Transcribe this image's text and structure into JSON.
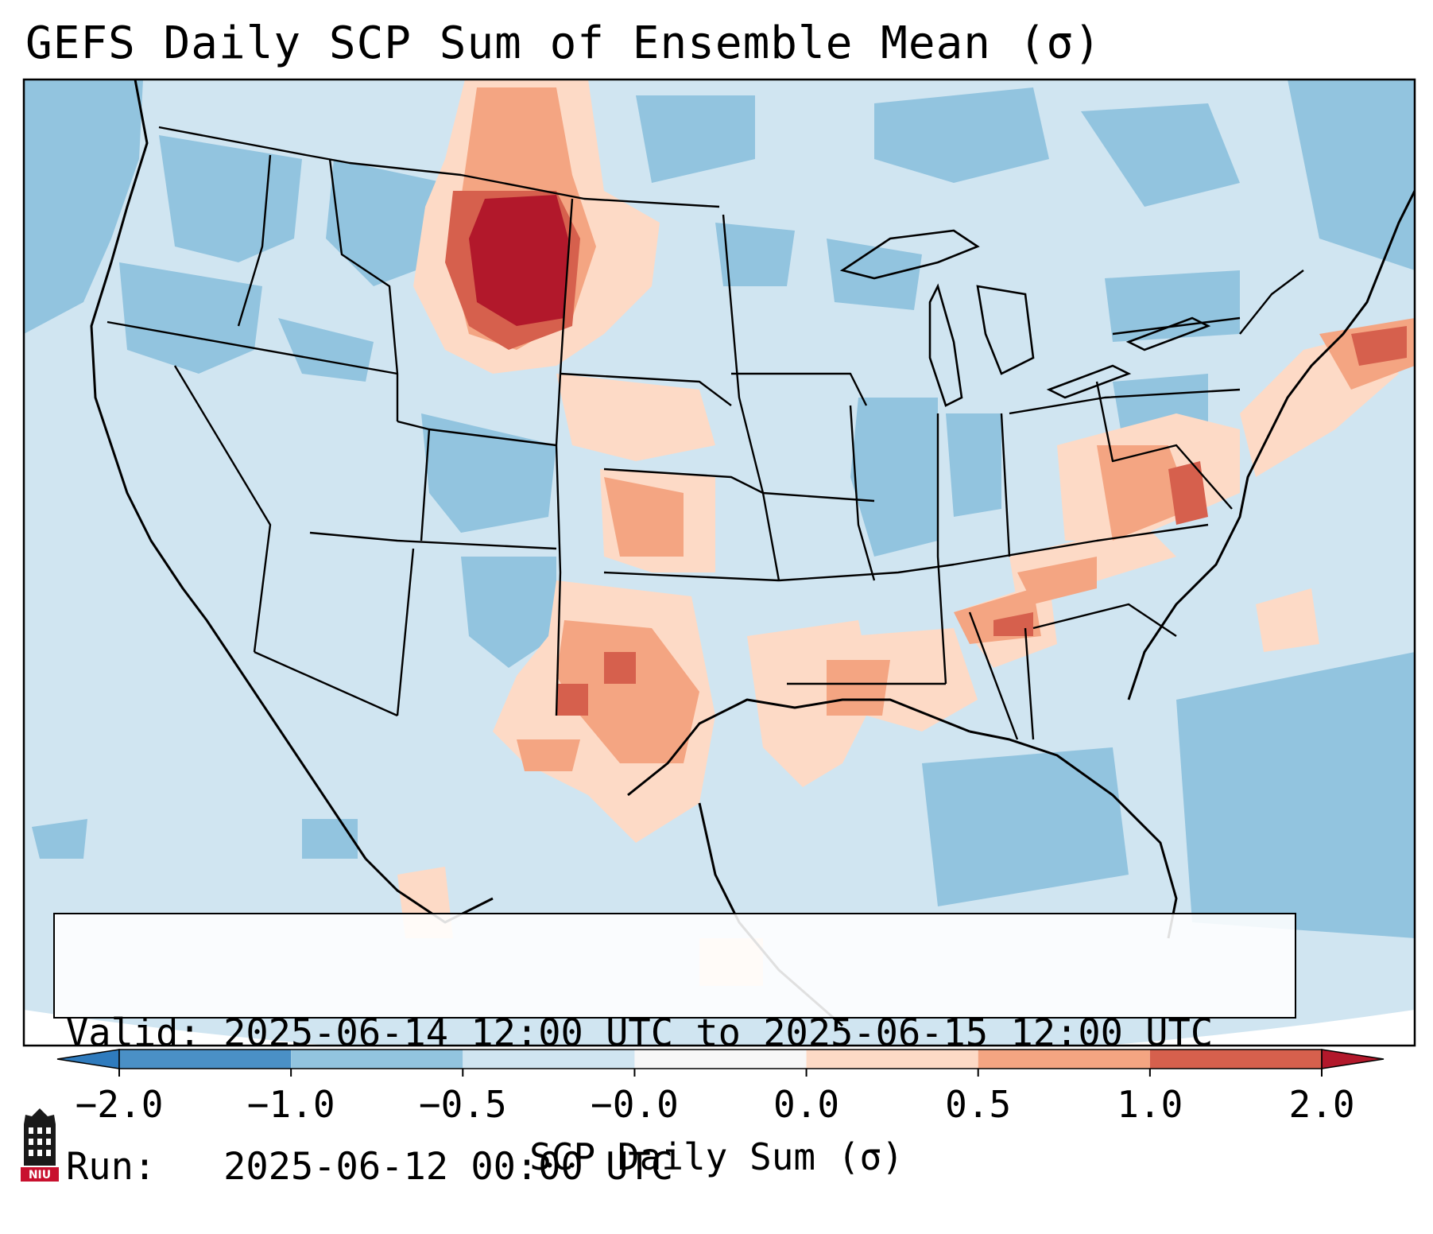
{
  "title": "GEFS Daily SCP Sum of Ensemble Mean (σ)",
  "info": {
    "valid_line": "Valid: 2025-06-14 12:00 UTC to 2025-06-15 12:00 UTC",
    "run_line": "Run:   2025-06-12 00:00 UTC"
  },
  "colorbar": {
    "label": "SCP Daily Sum (σ)",
    "ticks": [
      "−2.0",
      "−1.0",
      "−0.5",
      "−0.0",
      "0.0",
      "0.5",
      "1.0",
      "2.0"
    ],
    "bins": [
      {
        "range": "below -2.0",
        "color": "#2f7bbd"
      },
      {
        "range": "-2.0 to -1.0",
        "color": "#4a90c6"
      },
      {
        "range": "-1.0 to -0.5",
        "color": "#92c4df"
      },
      {
        "range": "-0.5 to -0.0",
        "color": "#d0e5f1"
      },
      {
        "range": "-0.0 to 0.0",
        "color": "#f7f7f7"
      },
      {
        "range": "0.0 to 0.5",
        "color": "#fddac6"
      },
      {
        "range": "0.5 to 1.0",
        "color": "#f4a582"
      },
      {
        "range": "1.0 to 2.0",
        "color": "#d6604d"
      },
      {
        "range": "above 2.0",
        "color": "#b2182b"
      }
    ]
  },
  "logo": {
    "text": "NIU"
  },
  "regions": {
    "max": {
      "area": "Montana / Wyoming",
      "category": "above 2.0"
    },
    "high": [
      "western Virginia",
      "central Alabama",
      "southern Plains"
    ],
    "negative": [
      "Pacific Northwest",
      "Great Lakes",
      "Gulf of Mexico",
      "western Atlantic"
    ]
  }
}
